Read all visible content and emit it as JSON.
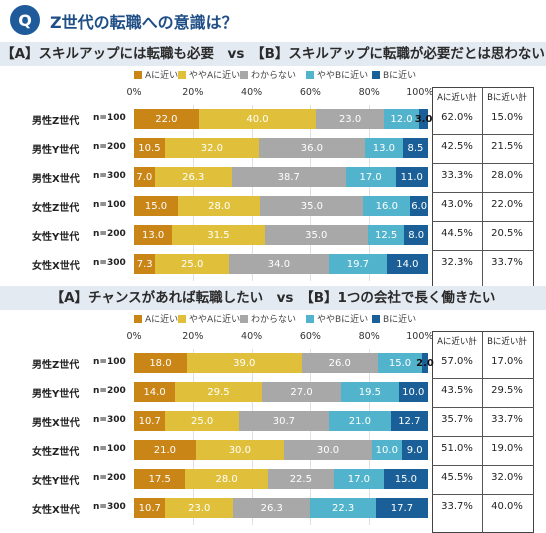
{
  "question": {
    "badge": "Q",
    "title": "Z世代の転職への意識は？"
  },
  "colors": {
    "a": "#c98516",
    "somewhat_a": "#e0c03a",
    "unknown": "#a8a8a8",
    "somewhat_b": "#52b4cc",
    "b": "#1a5f98"
  },
  "legend": [
    "Aに近い",
    "ややAに近い",
    "わからない",
    "ややBに近い",
    "Bに近い"
  ],
  "ticks": [
    "0%",
    "20%",
    "40%",
    "60%",
    "80%",
    "100%"
  ],
  "stat_headers": {
    "a_total": "Aに近い計",
    "b_total": "Bに近い計"
  },
  "chart_data": [
    {
      "type": "bar",
      "stacked": "horizontal-100%",
      "title": "【A】スキルアップには転職も必要　vs　【B】スキルアップに転職が必要だとは思わない",
      "series_names": [
        "Aに近い",
        "ややAに近い",
        "わからない",
        "ややBに近い",
        "Bに近い"
      ],
      "rows": [
        {
          "label": "男性Z世代",
          "n": "n=100",
          "values": [
            22.0,
            40.0,
            23.0,
            12.0,
            3.0
          ],
          "a_total": "62.0%",
          "b_total": "15.0%"
        },
        {
          "label": "男性Y世代",
          "n": "n=200",
          "values": [
            10.5,
            32.0,
            36.0,
            13.0,
            8.5
          ],
          "a_total": "42.5%",
          "b_total": "21.5%"
        },
        {
          "label": "男性X世代",
          "n": "n=300",
          "values": [
            7.0,
            26.3,
            38.7,
            17.0,
            11.0
          ],
          "a_total": "33.3%",
          "b_total": "28.0%"
        },
        {
          "label": "女性Z世代",
          "n": "n=100",
          "values": [
            15.0,
            28.0,
            35.0,
            16.0,
            6.0
          ],
          "a_total": "43.0%",
          "b_total": "22.0%"
        },
        {
          "label": "女性Y世代",
          "n": "n=200",
          "values": [
            13.0,
            31.5,
            35.0,
            12.5,
            8.0
          ],
          "a_total": "44.5%",
          "b_total": "20.5%"
        },
        {
          "label": "女性X世代",
          "n": "n=300",
          "values": [
            7.3,
            25.0,
            34.0,
            19.7,
            14.0
          ],
          "a_total": "32.3%",
          "b_total": "33.7%"
        }
      ]
    },
    {
      "type": "bar",
      "stacked": "horizontal-100%",
      "title": "【A】チャンスがあれば転職したい　vs　【B】1つの会社で長く働きたい",
      "series_names": [
        "Aに近い",
        "ややAに近い",
        "わからない",
        "ややBに近い",
        "Bに近い"
      ],
      "rows": [
        {
          "label": "男性Z世代",
          "n": "n=100",
          "values": [
            18.0,
            39.0,
            26.0,
            15.0,
            2.0
          ],
          "a_total": "57.0%",
          "b_total": "17.0%"
        },
        {
          "label": "男性Y世代",
          "n": "n=200",
          "values": [
            14.0,
            29.5,
            27.0,
            19.5,
            10.0
          ],
          "a_total": "43.5%",
          "b_total": "29.5%"
        },
        {
          "label": "男性X世代",
          "n": "n=300",
          "values": [
            10.7,
            25.0,
            30.7,
            21.0,
            12.7
          ],
          "a_total": "35.7%",
          "b_total": "33.7%"
        },
        {
          "label": "女性Z世代",
          "n": "n=100",
          "values": [
            21.0,
            30.0,
            30.0,
            10.0,
            9.0
          ],
          "a_total": "51.0%",
          "b_total": "19.0%"
        },
        {
          "label": "女性Y世代",
          "n": "n=200",
          "values": [
            17.5,
            28.0,
            22.5,
            17.0,
            15.0
          ],
          "a_total": "45.5%",
          "b_total": "32.0%"
        },
        {
          "label": "女性X世代",
          "n": "n=300",
          "values": [
            10.7,
            23.0,
            26.3,
            22.3,
            17.7
          ],
          "a_total": "33.7%",
          "b_total": "40.0%"
        }
      ]
    }
  ]
}
